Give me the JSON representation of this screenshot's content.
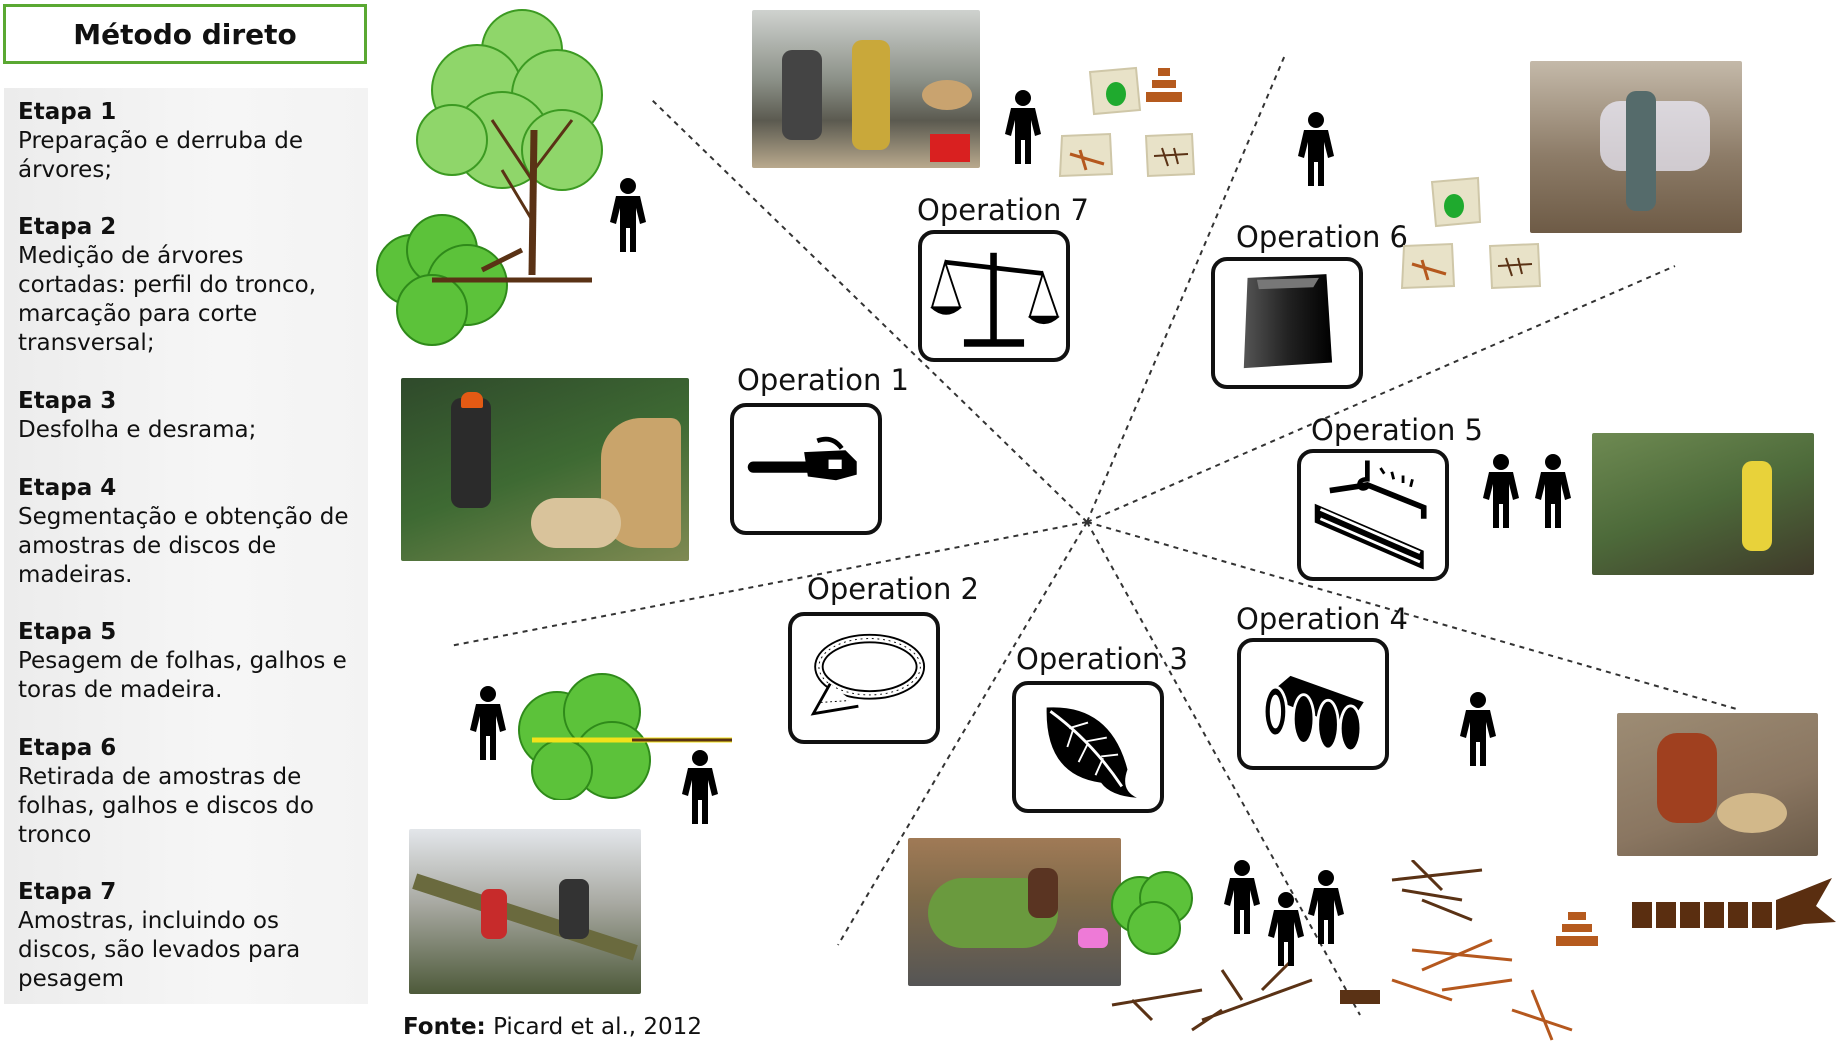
{
  "title": "Método direto",
  "steps": [
    {
      "title": "Etapa 1",
      "text": "Preparação e derruba de árvores;"
    },
    {
      "title": "Etapa 2",
      "text": "Medição de árvores cortadas: perfil do tronco, marcação para corte transversal;"
    },
    {
      "title": "Etapa 3",
      "text": "Desfolha e desrama;"
    },
    {
      "title": "Etapa 4",
      "text": "Segmentação e obtenção de amostras de discos de madeiras."
    },
    {
      "title": "Etapa 5",
      "text": "Pesagem de folhas, galhos e toras de madeira."
    },
    {
      "title": "Etapa 6",
      "text": "Retirada de amostras de folhas, galhos e discos do tronco"
    },
    {
      "title": "Etapa 7",
      "text": "Amostras, incluindo os discos, são levados para pesagem"
    }
  ],
  "operations": [
    {
      "label": "Operation 1",
      "icon": "chainsaw-icon"
    },
    {
      "label": "Operation 2",
      "icon": "measuring-tape-icon"
    },
    {
      "label": "Operation 3",
      "icon": "leaf-icon"
    },
    {
      "label": "Operation 4",
      "icon": "log-segments-icon"
    },
    {
      "label": "Operation 5",
      "icon": "crane-beam-icon"
    },
    {
      "label": "Operation 6",
      "icon": "bag-icon"
    },
    {
      "label": "Operation 7",
      "icon": "balance-scale-icon"
    }
  ],
  "source": {
    "label": "Fonte:",
    "text": "Picard et al., 2012"
  },
  "colors": {
    "title_border": "#5aa832",
    "panel_bg": "#efefef",
    "tree_green": "#5cc23a",
    "wood_brown": "#7a3b14",
    "person": "#000000"
  }
}
